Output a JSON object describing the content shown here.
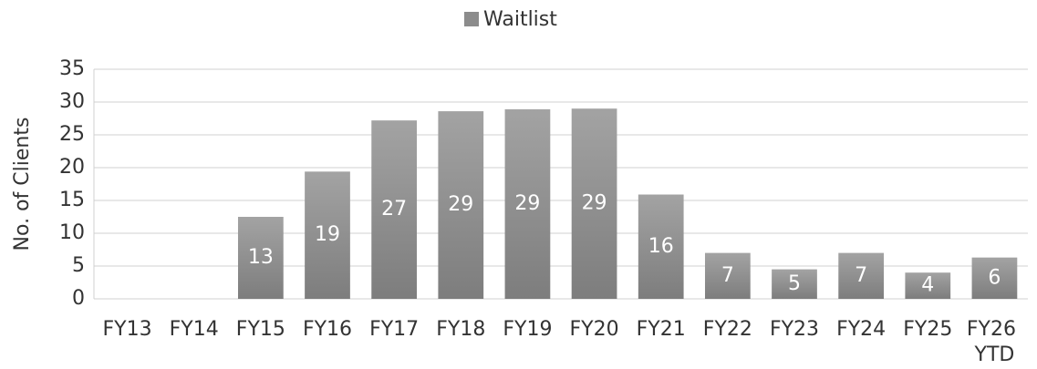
{
  "chart_data": {
    "type": "bar",
    "series": [
      {
        "name": "Waitlist",
        "color": "#8c8c8c",
        "values": [
          null,
          null,
          12.5,
          19.4,
          27.2,
          28.6,
          28.9,
          29.0,
          15.9,
          7.0,
          4.5,
          7.0,
          4.0,
          6.3
        ],
        "value_labels": [
          null,
          null,
          "13",
          "19",
          "27",
          "29",
          "29",
          "29",
          "16",
          "7",
          "5",
          "7",
          "4",
          "6"
        ]
      }
    ],
    "categories": [
      "FY13",
      "FY14",
      "FY15",
      "FY16",
      "FY17",
      "FY18",
      "FY19",
      "FY20",
      "FY21",
      "FY22",
      "FY23",
      "FY24",
      "FY25",
      "FY26 YTD"
    ],
    "y_label": "No. of Clients",
    "ylim": [
      0,
      35
    ],
    "yticks": [
      0,
      5,
      10,
      15,
      20,
      25,
      30,
      35
    ],
    "grid": true,
    "legend": "top"
  }
}
